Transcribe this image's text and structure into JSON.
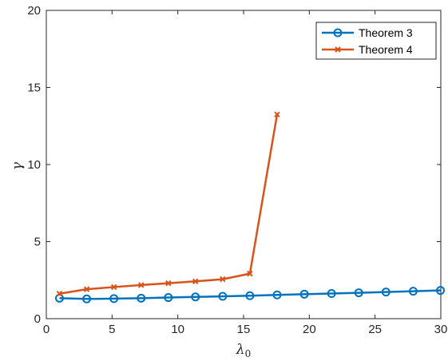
{
  "chart_data": {
    "type": "line",
    "title": "",
    "xlabel": "λ",
    "xlabel_subscript": "0",
    "ylabel": "γ",
    "xlim": [
      0,
      30
    ],
    "ylim": [
      0,
      20
    ],
    "xticks": [
      "0",
      "5",
      "10",
      "15",
      "20",
      "25",
      "30"
    ],
    "yticks": [
      "0",
      "5",
      "10",
      "15",
      "20"
    ],
    "grid": false,
    "legend_position": "top-right",
    "series": [
      {
        "name": "Theorem 3",
        "color": "#0072BD",
        "marker": "circle",
        "x": [
          1,
          3.07,
          5.14,
          7.21,
          9.28,
          11.34,
          13.41,
          15.48,
          17.55,
          19.62,
          21.69,
          23.76,
          25.83,
          27.9,
          29.97
        ],
        "y": [
          1.33,
          1.28,
          1.3,
          1.33,
          1.37,
          1.41,
          1.45,
          1.49,
          1.54,
          1.59,
          1.63,
          1.68,
          1.73,
          1.78,
          1.83
        ]
      },
      {
        "name": "Theorem 4",
        "color": "#D95319",
        "marker": "x",
        "x": [
          1,
          3.07,
          5.14,
          7.21,
          9.28,
          11.34,
          13.41,
          15.48,
          17.55
        ],
        "y": [
          1.62,
          1.91,
          2.05,
          2.18,
          2.3,
          2.42,
          2.56,
          2.92,
          13.25
        ]
      }
    ]
  }
}
